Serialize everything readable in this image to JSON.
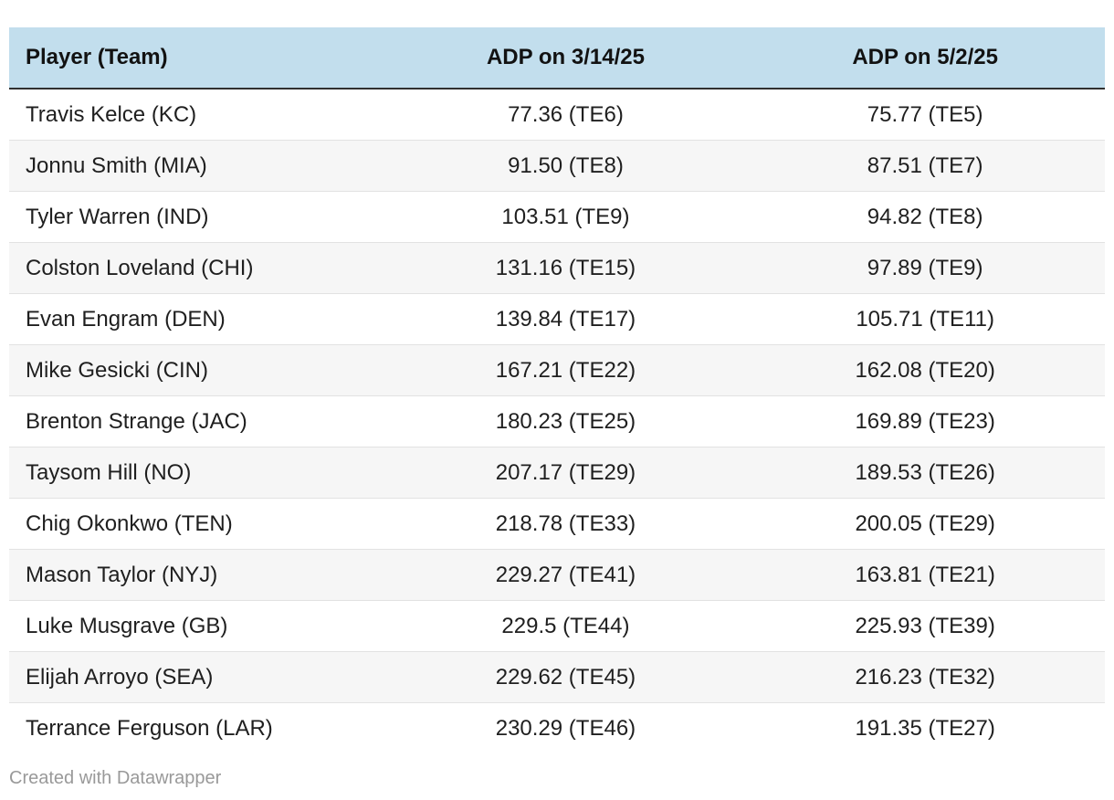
{
  "chart_data": {
    "type": "table",
    "title": "",
    "columns": [
      "Player (Team)",
      "ADP on 3/14/25",
      "ADP on 5/2/25"
    ],
    "rows": [
      [
        "Travis Kelce (KC)",
        "77.36 (TE6)",
        "75.77 (TE5)"
      ],
      [
        "Jonnu Smith (MIA)",
        "91.50 (TE8)",
        "87.51 (TE7)"
      ],
      [
        "Tyler Warren (IND)",
        "103.51 (TE9)",
        "94.82 (TE8)"
      ],
      [
        "Colston Loveland (CHI)",
        "131.16 (TE15)",
        "97.89 (TE9)"
      ],
      [
        "Evan Engram (DEN)",
        "139.84 (TE17)",
        "105.71 (TE11)"
      ],
      [
        "Mike Gesicki (CIN)",
        "167.21 (TE22)",
        "162.08 (TE20)"
      ],
      [
        "Brenton Strange (JAC)",
        "180.23 (TE25)",
        "169.89 (TE23)"
      ],
      [
        "Taysom Hill (NO)",
        "207.17 (TE29)",
        "189.53 (TE26)"
      ],
      [
        "Chig Okonkwo (TEN)",
        "218.78 (TE33)",
        "200.05 (TE29)"
      ],
      [
        "Mason Taylor (NYJ)",
        "229.27 (TE41)",
        "163.81 (TE21)"
      ],
      [
        "Luke Musgrave (GB)",
        "229.5 (TE44)",
        "225.93 (TE39)"
      ],
      [
        "Elijah Arroyo (SEA)",
        "229.62 (TE45)",
        "216.23 (TE32)"
      ],
      [
        "Terrance Ferguson (LAR)",
        "230.29 (TE46)",
        "191.35 (TE27)"
      ]
    ],
    "layout": {
      "header_highlight": true,
      "alternating_rows": true,
      "numeric_columns_align": "center"
    }
  },
  "footer": {
    "credit_label": "Created with Datawrapper"
  },
  "colors": {
    "header_bg": "#c2deed",
    "header_border": "#303030",
    "row_bg": "#ffffff",
    "row_alt_bg": "#f6f6f6",
    "row_separator": "#e2e2e2",
    "body_text": "#1f1f1f",
    "header_text": "#121212",
    "credit_text": "#999999"
  }
}
